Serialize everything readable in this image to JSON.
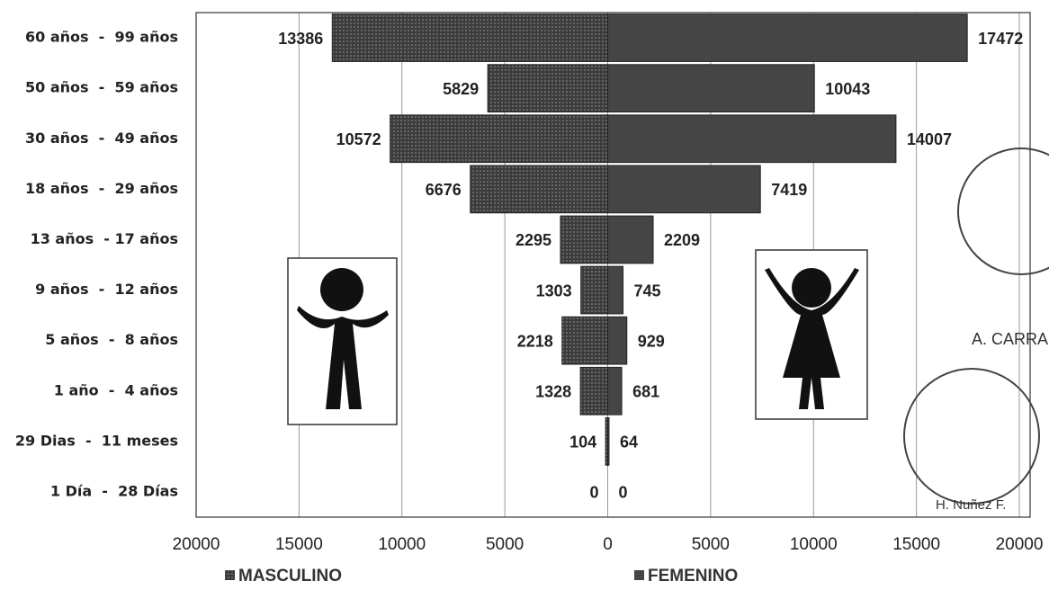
{
  "chart_data": {
    "type": "pyramid",
    "categories": [
      "60 años  -  99 años",
      "50 años  -  59 años",
      "30 años  -  49 años",
      "18 años  -  29 años",
      "13 años  - 17 años",
      "9 años  -  12 años",
      "5 años  -  8 años",
      "1 año  -  4 años",
      "29 Dias  -  11 meses",
      "1 Día  -  28 Días"
    ],
    "series": [
      {
        "name": "MASCULINO",
        "color": "#3c3c3c",
        "values": [
          -13386,
          -5829,
          -10572,
          -6676,
          -2295,
          -1303,
          -2218,
          -1328,
          -104,
          0
        ],
        "value_labels": [
          "13386",
          "5829",
          "10572",
          "6676",
          "2295",
          "1303",
          "2218",
          "1328",
          "104",
          "0"
        ]
      },
      {
        "name": "FEMENINO",
        "color": "#454545",
        "values": [
          17472,
          10043,
          14007,
          7419,
          2209,
          745,
          929,
          681,
          64,
          0
        ]
      }
    ],
    "xlim": [
      -20000,
      20000
    ],
    "xticks": [
      {
        "value": -20000,
        "label": "20000"
      },
      {
        "value": -15000,
        "label": "15000"
      },
      {
        "value": -10000,
        "label": "10000"
      },
      {
        "value": -5000,
        "label": "5000"
      },
      0,
      5000,
      10000,
      15000,
      20000
    ],
    "grid": true,
    "annotations": [
      "A. CARRA",
      "H. Nuñez F."
    ]
  }
}
